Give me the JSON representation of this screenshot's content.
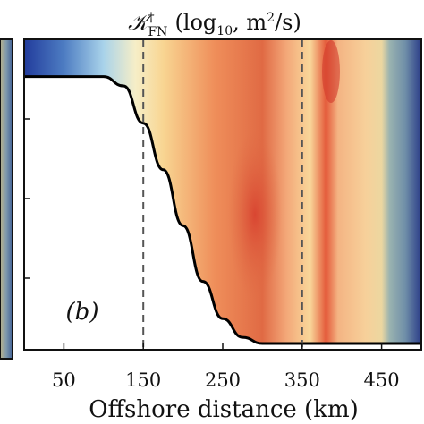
{
  "chart_data": {
    "type": "heatmap",
    "title": "𝒦†FN (log₁₀, m²/s)",
    "title_parts": {
      "symbol": "𝒦",
      "superscript": "†",
      "subscript": "FN",
      "units": "(log",
      "units_sub": "10",
      "units_rest": ", m",
      "units_sup": "2",
      "units_end": "/s)"
    },
    "xlabel": "Offshore distance (km)",
    "panel_label": "(b)",
    "x_ticks": [
      50,
      150,
      250,
      350,
      450
    ],
    "x_tick_labels": [
      "50",
      "150",
      "250",
      "350",
      "450"
    ],
    "xlim": [
      0,
      500
    ],
    "dashed_lines_x": [
      150,
      350
    ],
    "grid": false,
    "colormap": "blue (low) - white - yellow - orange - red (high)",
    "colors": {
      "low": "#1a3a9a",
      "mid": "#f7f1c4",
      "high": "#c9352a",
      "topography": "#000000",
      "dashed": "#555555"
    },
    "bathymetry_profile": [
      {
        "x": 0,
        "depth_frac": 0.12
      },
      {
        "x": 100,
        "depth_frac": 0.12
      },
      {
        "x": 125,
        "depth_frac": 0.15
      },
      {
        "x": 150,
        "depth_frac": 0.27
      },
      {
        "x": 175,
        "depth_frac": 0.42
      },
      {
        "x": 200,
        "depth_frac": 0.6
      },
      {
        "x": 225,
        "depth_frac": 0.78
      },
      {
        "x": 250,
        "depth_frac": 0.9
      },
      {
        "x": 275,
        "depth_frac": 0.96
      },
      {
        "x": 300,
        "depth_frac": 0.98
      },
      {
        "x": 500,
        "depth_frac": 0.98
      }
    ]
  }
}
